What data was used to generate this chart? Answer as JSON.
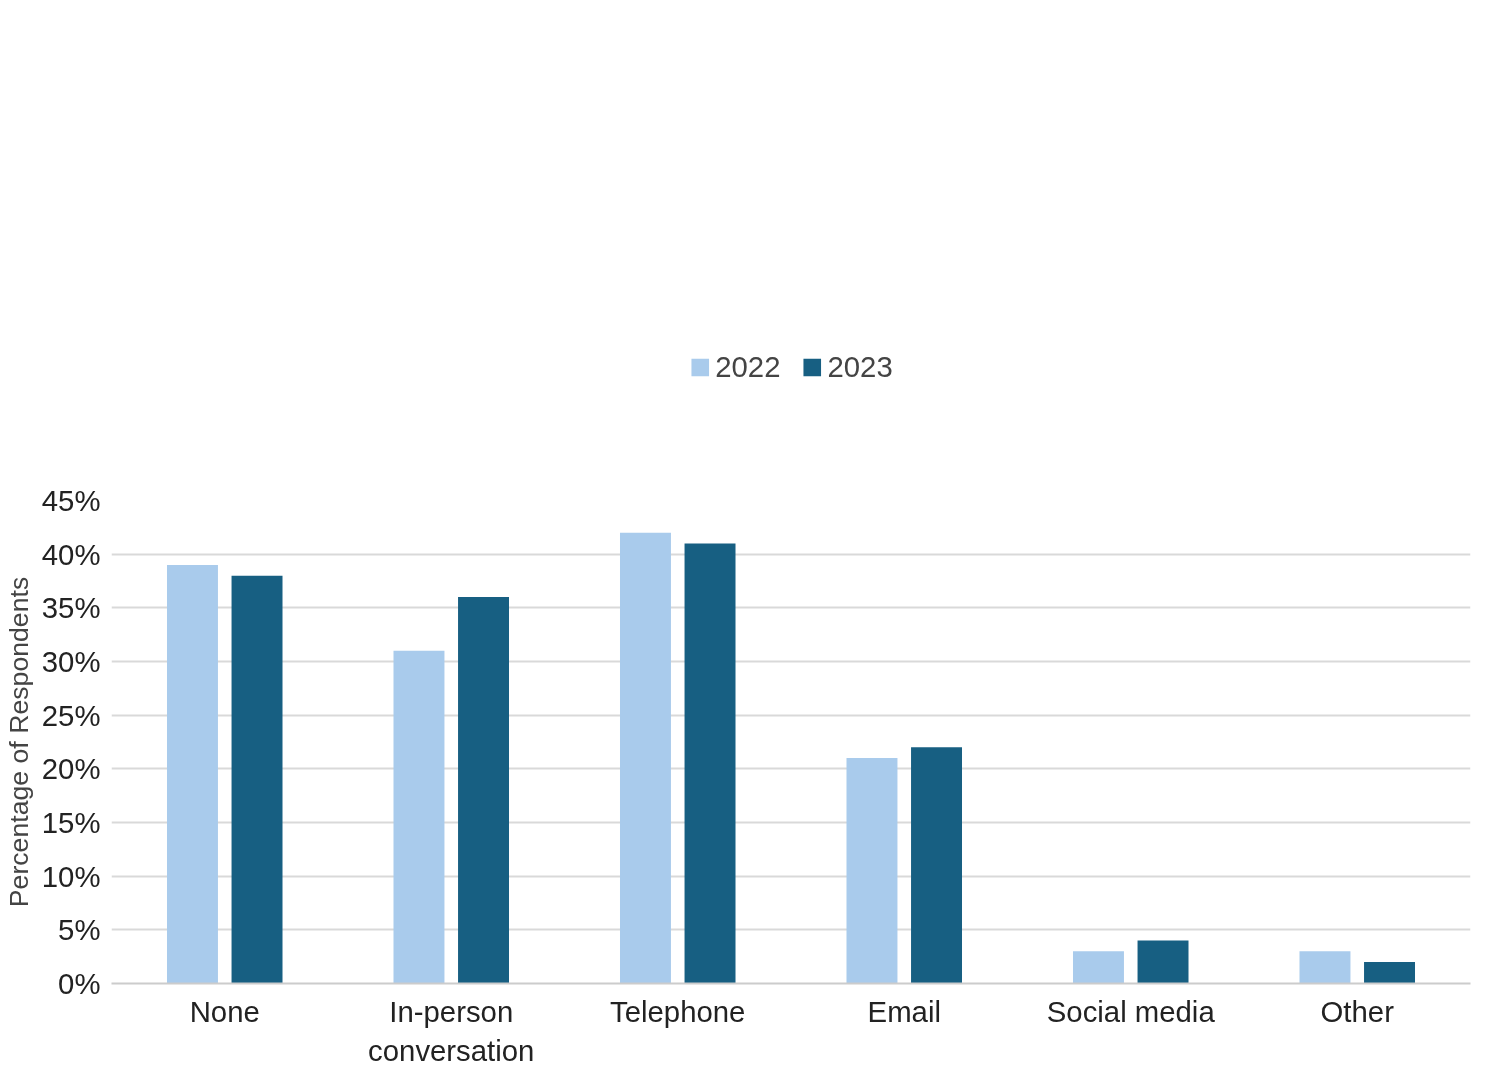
{
  "chart_data": {
    "type": "bar",
    "ylabel": "Percentage of Respondents",
    "categories": [
      "None",
      "In-person conversation",
      "Telephone",
      "Email",
      "Social media",
      "Other"
    ],
    "series": [
      {
        "name": "2022",
        "color": "#a9cbec",
        "values": [
          39,
          31,
          42,
          21,
          3,
          3
        ]
      },
      {
        "name": "2023",
        "color": "#175f82",
        "values": [
          38,
          36,
          41,
          22,
          4,
          2
        ]
      }
    ],
    "ylim": [
      0,
      45
    ],
    "yticks": [
      {
        "value": 0,
        "label": "0%"
      },
      {
        "value": 5,
        "label": "5%"
      },
      {
        "value": 10,
        "label": "10%"
      },
      {
        "value": 15,
        "label": "15%"
      },
      {
        "value": 20,
        "label": "20%"
      },
      {
        "value": 25,
        "label": "25%"
      },
      {
        "value": 30,
        "label": "30%"
      },
      {
        "value": 35,
        "label": "35%"
      },
      {
        "value": 40,
        "label": "40%"
      },
      {
        "value": 45,
        "label": "45%"
      }
    ],
    "grid": "y",
    "legend": "top"
  }
}
